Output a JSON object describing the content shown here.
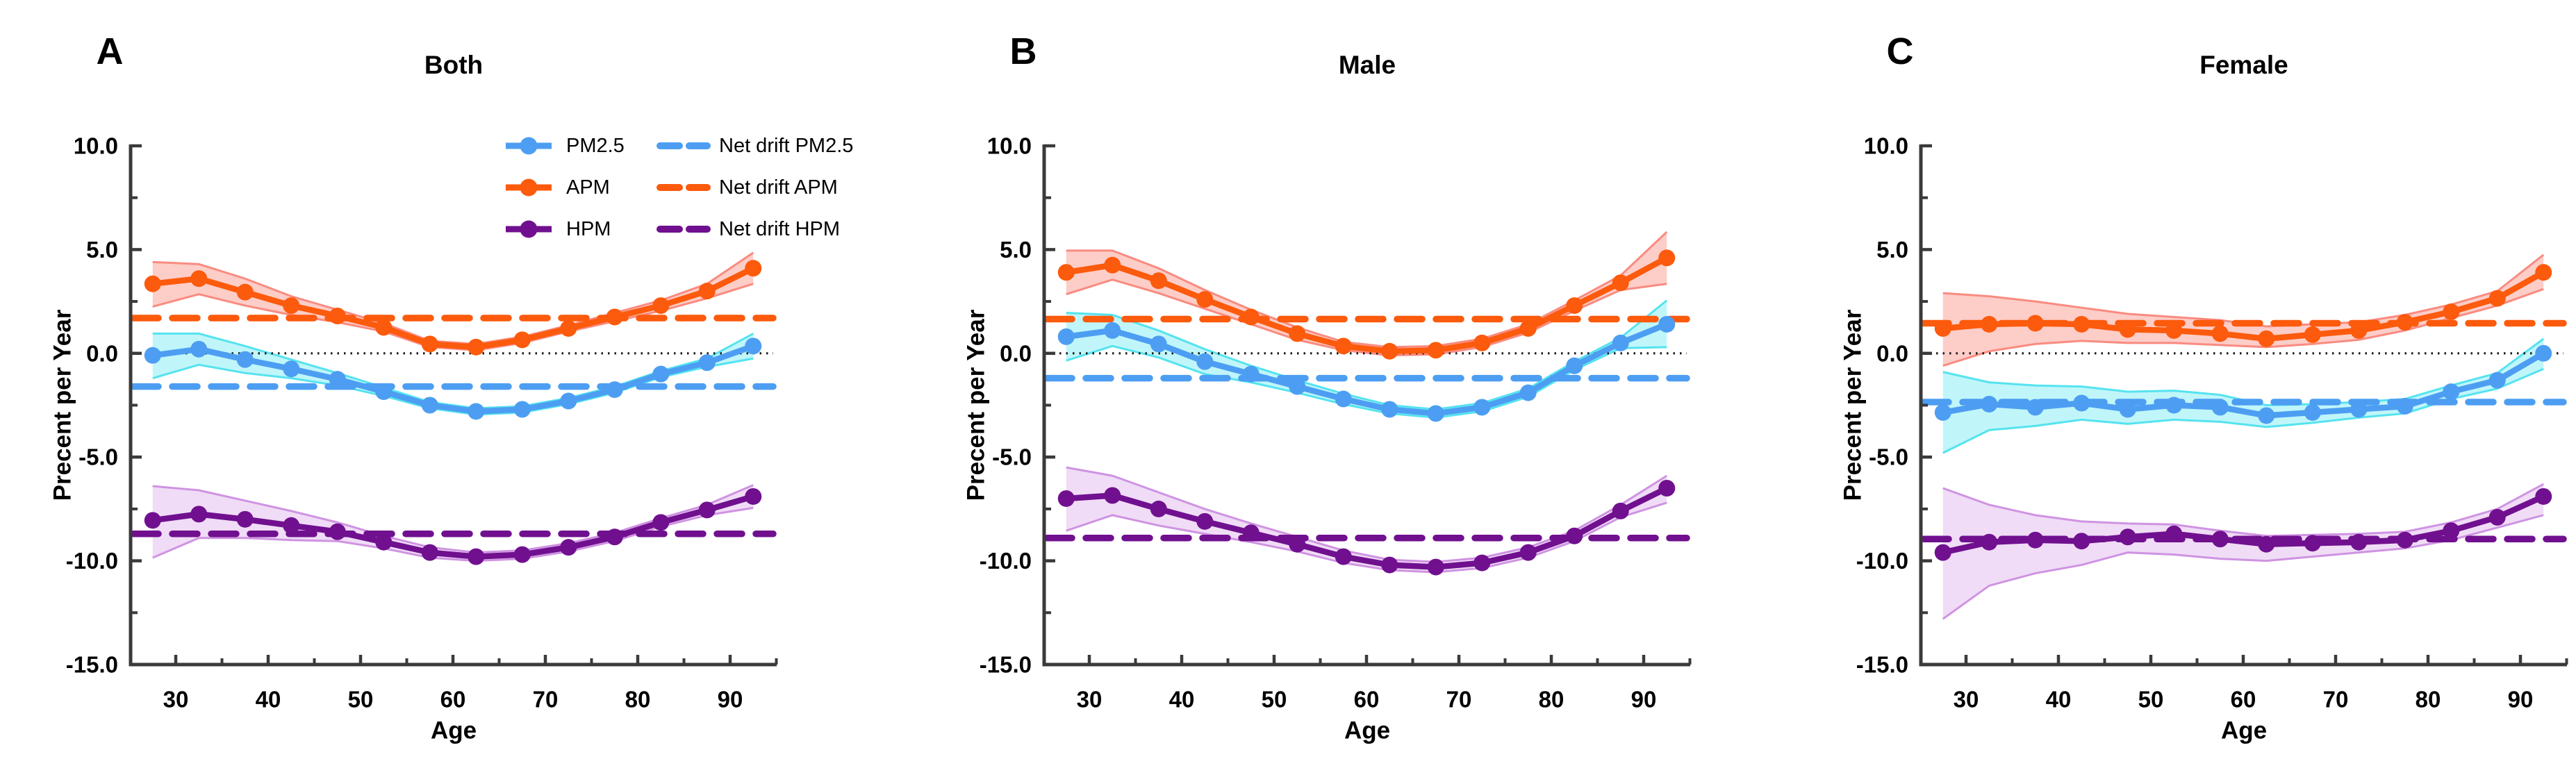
{
  "axes": {
    "y_label": "Precent per Year",
    "x_label": "Age",
    "y_tick_labels": [
      "10.0",
      "5.0",
      "0.0",
      "-5.0",
      "-10.0",
      "-15.0"
    ],
    "y_tick_values": [
      10,
      5,
      0,
      -5,
      -10,
      -15
    ],
    "y_minor_tick_values": [
      7.5,
      2.5,
      -2.5,
      -7.5,
      -12.5
    ],
    "x_tick_labels": [
      "30",
      "40",
      "50",
      "60",
      "70",
      "80",
      "90"
    ],
    "x_tick_values": [
      30,
      40,
      50,
      60,
      70,
      80,
      90
    ],
    "x_minor_tick_values": [
      35,
      45,
      55,
      65,
      75,
      85,
      95
    ],
    "ylim": [
      -15,
      10
    ],
    "zero_reference_line": 0,
    "grid": "off"
  },
  "colors": {
    "pm25": "#4D9EF2",
    "apm": "#FC5A0C",
    "hpm": "#70108F",
    "pm25_band": "#8DEEF6",
    "pm25_band_edge": "#55E3EF",
    "apm_band": "#FBA49B",
    "apm_band_edge": "#F98B80",
    "hpm_band": "#E3BFEF",
    "hpm_band_edge": "#CF93E2",
    "axis": "#3A3A3A",
    "zero_line": "#1A1A1A",
    "text": "#000000"
  },
  "legend": {
    "position": "top of panel A, two columns",
    "items": [
      {
        "id": "pm25",
        "label": "PM2.5",
        "style": "solid",
        "color_key": "pm25"
      },
      {
        "id": "apm",
        "label": "APM",
        "style": "solid",
        "color_key": "apm"
      },
      {
        "id": "hpm",
        "label": "HPM",
        "style": "solid",
        "color_key": "hpm"
      },
      {
        "id": "nd-pm25",
        "label": "Net drift PM2.5",
        "style": "dashed",
        "color_key": "pm25"
      },
      {
        "id": "nd-apm",
        "label": "Net drift APM",
        "style": "dashed",
        "color_key": "apm"
      },
      {
        "id": "nd-hpm",
        "label": "Net drift HPM",
        "style": "dashed",
        "color_key": "hpm"
      }
    ]
  },
  "ages": [
    27.5,
    32.5,
    37.5,
    42.5,
    47.5,
    52.5,
    57.5,
    62.5,
    67.5,
    72.5,
    77.5,
    82.5,
    87.5,
    92.5
  ],
  "chart_data": [
    {
      "panel_letter": "A",
      "title": "Both",
      "type": "line",
      "xlabel": "Age",
      "ylabel": "Precent per Year",
      "ylim": [
        -15,
        10
      ],
      "x": [
        27.5,
        32.5,
        37.5,
        42.5,
        47.5,
        52.5,
        57.5,
        62.5,
        67.5,
        72.5,
        77.5,
        82.5,
        87.5,
        92.5
      ],
      "series": [
        {
          "name": "APM",
          "color_key": "apm",
          "values": [
            3.35,
            3.6,
            2.95,
            2.3,
            1.8,
            1.25,
            0.45,
            0.3,
            0.65,
            1.2,
            1.75,
            2.3,
            3.0,
            4.1
          ],
          "ci_upper": [
            4.4,
            4.3,
            3.6,
            2.75,
            2.1,
            1.45,
            0.6,
            0.45,
            0.8,
            1.35,
            1.95,
            2.55,
            3.35,
            4.85
          ],
          "ci_lower": [
            2.25,
            2.85,
            2.3,
            1.85,
            1.5,
            1.05,
            0.3,
            0.15,
            0.5,
            1.05,
            1.55,
            2.05,
            2.65,
            3.35
          ]
        },
        {
          "name": "PM2.5",
          "color_key": "pm25",
          "values": [
            -0.1,
            0.2,
            -0.3,
            -0.75,
            -1.25,
            -1.85,
            -2.5,
            -2.8,
            -2.7,
            -2.3,
            -1.75,
            -1.0,
            -0.45,
            0.35
          ],
          "ci_upper": [
            0.95,
            0.95,
            0.35,
            -0.3,
            -0.95,
            -1.65,
            -2.35,
            -2.65,
            -2.55,
            -2.15,
            -1.6,
            -0.85,
            -0.25,
            0.95
          ],
          "ci_lower": [
            -1.2,
            -0.55,
            -0.95,
            -1.2,
            -1.55,
            -2.05,
            -2.65,
            -2.95,
            -2.85,
            -2.45,
            -1.9,
            -1.15,
            -0.65,
            -0.25
          ]
        },
        {
          "name": "HPM",
          "color_key": "hpm",
          "values": [
            -8.05,
            -7.75,
            -8.0,
            -8.3,
            -8.6,
            -9.1,
            -9.6,
            -9.8,
            -9.7,
            -9.35,
            -8.85,
            -8.15,
            -7.55,
            -6.9
          ],
          "ci_upper": [
            -6.4,
            -6.6,
            -7.1,
            -7.6,
            -8.15,
            -8.8,
            -9.35,
            -9.6,
            -9.5,
            -9.15,
            -8.65,
            -7.95,
            -7.3,
            -6.35
          ],
          "ci_lower": [
            -9.85,
            -8.9,
            -8.9,
            -9.0,
            -9.05,
            -9.4,
            -9.85,
            -10.0,
            -9.9,
            -9.55,
            -9.05,
            -8.35,
            -7.8,
            -7.45
          ]
        }
      ],
      "net_drift": [
        {
          "name": "Net drift APM",
          "color_key": "apm",
          "value": 1.7
        },
        {
          "name": "Net drift PM2.5",
          "color_key": "pm25",
          "value": -1.6
        },
        {
          "name": "Net drift HPM",
          "color_key": "hpm",
          "value": -8.7
        }
      ]
    },
    {
      "panel_letter": "B",
      "title": "Male",
      "type": "line",
      "xlabel": "Age",
      "ylabel": "Precent per Year",
      "ylim": [
        -15,
        10
      ],
      "x": [
        27.5,
        32.5,
        37.5,
        42.5,
        47.5,
        52.5,
        57.5,
        62.5,
        67.5,
        72.5,
        77.5,
        82.5,
        87.5,
        92.5
      ],
      "series": [
        {
          "name": "APM",
          "color_key": "apm",
          "values": [
            3.9,
            4.25,
            3.5,
            2.6,
            1.75,
            0.95,
            0.35,
            0.1,
            0.15,
            0.5,
            1.2,
            2.3,
            3.4,
            4.6
          ],
          "ci_upper": [
            4.95,
            4.95,
            4.1,
            3.05,
            2.1,
            1.25,
            0.55,
            0.3,
            0.35,
            0.7,
            1.4,
            2.55,
            3.75,
            5.85
          ],
          "ci_lower": [
            2.85,
            3.55,
            2.9,
            2.15,
            1.4,
            0.65,
            0.15,
            -0.1,
            -0.05,
            0.3,
            1.0,
            2.05,
            3.05,
            3.35
          ]
        },
        {
          "name": "PM2.5",
          "color_key": "pm25",
          "values": [
            0.8,
            1.1,
            0.45,
            -0.4,
            -1.0,
            -1.6,
            -2.2,
            -2.7,
            -2.9,
            -2.6,
            -1.9,
            -0.6,
            0.5,
            1.4
          ],
          "ci_upper": [
            1.95,
            1.85,
            1.1,
            0.2,
            -0.6,
            -1.3,
            -1.95,
            -2.5,
            -2.7,
            -2.4,
            -1.7,
            -0.4,
            0.75,
            2.55
          ],
          "ci_lower": [
            -0.35,
            0.35,
            -0.2,
            -1.0,
            -1.4,
            -1.9,
            -2.45,
            -2.9,
            -3.1,
            -2.8,
            -2.1,
            -0.8,
            0.25,
            0.3
          ]
        },
        {
          "name": "HPM",
          "color_key": "hpm",
          "values": [
            -7.0,
            -6.85,
            -7.5,
            -8.1,
            -8.65,
            -9.2,
            -9.8,
            -10.2,
            -10.3,
            -10.1,
            -9.6,
            -8.8,
            -7.6,
            -6.5
          ],
          "ci_upper": [
            -5.5,
            -5.9,
            -6.7,
            -7.5,
            -8.2,
            -8.85,
            -9.5,
            -9.95,
            -10.05,
            -9.85,
            -9.35,
            -8.55,
            -7.3,
            -5.9
          ],
          "ci_lower": [
            -8.55,
            -7.8,
            -8.3,
            -8.7,
            -9.1,
            -9.55,
            -10.1,
            -10.45,
            -10.55,
            -10.35,
            -9.85,
            -9.05,
            -7.9,
            -7.2
          ]
        }
      ],
      "net_drift": [
        {
          "name": "Net drift APM",
          "color_key": "apm",
          "value": 1.65
        },
        {
          "name": "Net drift PM2.5",
          "color_key": "pm25",
          "value": -1.2
        },
        {
          "name": "Net drift HPM",
          "color_key": "hpm",
          "value": -8.9
        }
      ]
    },
    {
      "panel_letter": "C",
      "title": "Female",
      "type": "line",
      "xlabel": "Age",
      "ylabel": "Precent per Year",
      "ylim": [
        -15,
        10
      ],
      "x": [
        27.5,
        32.5,
        37.5,
        42.5,
        47.5,
        52.5,
        57.5,
        62.5,
        67.5,
        72.5,
        77.5,
        82.5,
        87.5,
        92.5
      ],
      "series": [
        {
          "name": "APM",
          "color_key": "apm",
          "values": [
            1.2,
            1.4,
            1.45,
            1.4,
            1.15,
            1.1,
            0.95,
            0.7,
            0.9,
            1.1,
            1.5,
            2.0,
            2.65,
            3.9
          ],
          "ci_upper": [
            2.9,
            2.75,
            2.5,
            2.2,
            1.9,
            1.75,
            1.6,
            1.3,
            1.4,
            1.5,
            1.85,
            2.35,
            3.0,
            4.75
          ],
          "ci_lower": [
            -0.6,
            0.1,
            0.45,
            0.6,
            0.5,
            0.5,
            0.4,
            0.3,
            0.45,
            0.65,
            1.1,
            1.7,
            2.3,
            3.1
          ]
        },
        {
          "name": "PM2.5",
          "color_key": "pm25",
          "values": [
            -2.85,
            -2.45,
            -2.6,
            -2.4,
            -2.7,
            -2.5,
            -2.6,
            -3.0,
            -2.85,
            -2.7,
            -2.55,
            -1.85,
            -1.3,
            0.0
          ],
          "ci_upper": [
            -0.9,
            -1.4,
            -1.55,
            -1.6,
            -1.85,
            -1.8,
            -2.0,
            -2.5,
            -2.45,
            -2.35,
            -2.2,
            -1.55,
            -0.95,
            0.7
          ],
          "ci_lower": [
            -4.8,
            -3.7,
            -3.5,
            -3.2,
            -3.4,
            -3.2,
            -3.3,
            -3.55,
            -3.35,
            -3.1,
            -2.9,
            -2.2,
            -1.7,
            -0.75
          ]
        },
        {
          "name": "HPM",
          "color_key": "hpm",
          "values": [
            -9.6,
            -9.1,
            -9.0,
            -9.05,
            -8.85,
            -8.7,
            -8.95,
            -9.2,
            -9.15,
            -9.1,
            -9.0,
            -8.55,
            -7.9,
            -6.9
          ],
          "ci_upper": [
            -6.5,
            -7.3,
            -7.8,
            -8.1,
            -8.2,
            -8.25,
            -8.55,
            -8.8,
            -8.75,
            -8.7,
            -8.6,
            -8.15,
            -7.5,
            -6.3
          ],
          "ci_lower": [
            -12.8,
            -11.2,
            -10.6,
            -10.2,
            -9.6,
            -9.7,
            -9.9,
            -10.0,
            -9.8,
            -9.6,
            -9.4,
            -9.0,
            -8.4,
            -7.8
          ]
        }
      ],
      "net_drift": [
        {
          "name": "Net drift APM",
          "color_key": "apm",
          "value": 1.45
        },
        {
          "name": "Net drift PM2.5",
          "color_key": "pm25",
          "value": -2.35
        },
        {
          "name": "Net drift HPM",
          "color_key": "hpm",
          "value": -8.95
        }
      ]
    }
  ]
}
